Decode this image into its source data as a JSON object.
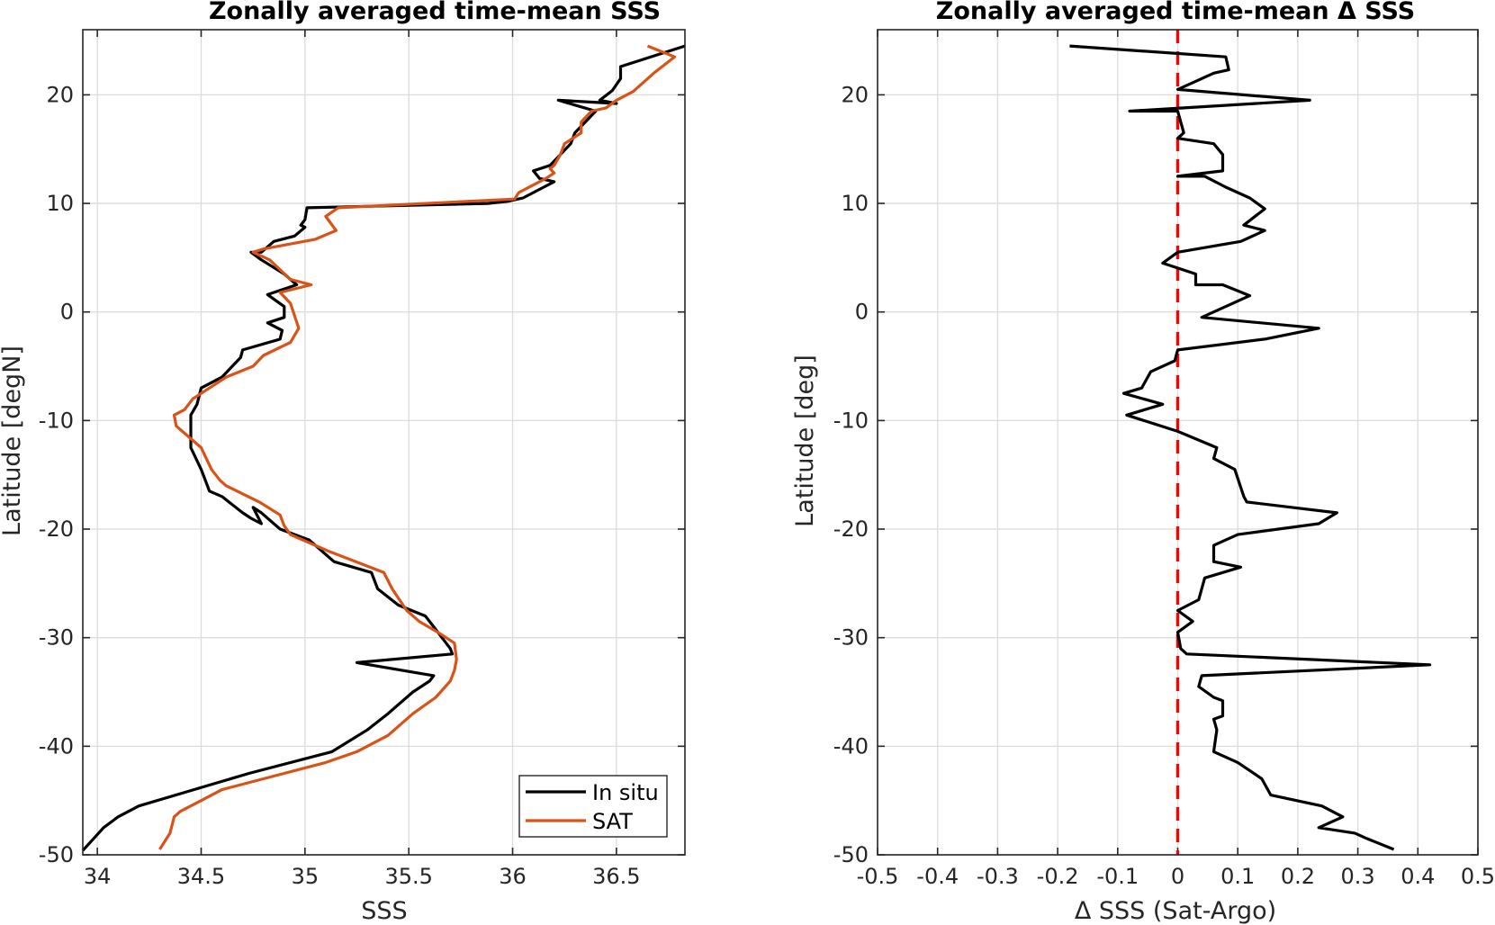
{
  "chart_data": [
    {
      "type": "line",
      "title": "Zonally averaged time-mean SSS",
      "xlabel": "SSS",
      "ylabel": "Latitude [degN]",
      "xlim": [
        33.93,
        36.83
      ],
      "ylim": [
        -50,
        26
      ],
      "xticks": [
        34,
        34.5,
        35,
        35.5,
        36,
        36.5
      ],
      "xtick_labels": [
        "34",
        "34.5",
        "35",
        "35.5",
        "36",
        "36.5"
      ],
      "yticks": [
        -50,
        -40,
        -30,
        -20,
        -10,
        0,
        10,
        20
      ],
      "ytick_labels": [
        "-50",
        "-40",
        "-30",
        "-20",
        "-10",
        "0",
        "10",
        "20"
      ],
      "grid": true,
      "legend_position": "bottom-right",
      "series": [
        {
          "name": "In situ",
          "color": "#000000",
          "x": [
            36.83,
            36.52,
            36.52,
            36.48,
            36.42,
            36.5,
            36.22,
            36.4,
            36.35,
            36.3,
            36.28,
            36.23,
            36.18,
            36.1,
            36.13,
            36.2,
            36.15,
            36.05,
            35.98,
            35.88,
            35.01,
            35.0,
            34.98,
            35.0,
            34.95,
            34.85,
            34.79,
            34.74,
            34.79,
            34.9,
            34.96,
            34.82,
            34.9,
            34.9,
            34.82,
            34.89,
            34.88,
            34.7,
            34.69,
            34.65,
            34.6,
            34.5,
            34.48,
            34.45,
            34.45,
            34.45,
            34.5,
            34.52,
            34.54,
            34.6,
            34.7,
            34.74,
            34.79,
            34.75,
            34.79,
            34.88,
            35.02,
            35.14,
            35.32,
            35.35,
            35.45,
            35.58,
            35.62,
            35.66,
            35.7,
            35.71,
            35.25,
            35.62,
            35.6,
            35.52,
            35.4,
            35.3,
            35.13,
            34.73,
            34.2,
            34.1,
            34.03,
            33.93
          ],
          "y": [
            24.5,
            22.6,
            21.5,
            20.4,
            19.5,
            19.2,
            19.5,
            18.5,
            17.5,
            16.5,
            15.5,
            14.5,
            13.5,
            13.0,
            12.3,
            12.0,
            11.5,
            10.5,
            10.2,
            10.0,
            9.6,
            8.5,
            8.0,
            7.8,
            7.0,
            6.5,
            5.5,
            5.5,
            4.8,
            3.5,
            2.5,
            1.6,
            0.5,
            -0.5,
            -1.0,
            -1.7,
            -2.5,
            -3.5,
            -4.2,
            -5.0,
            -6.0,
            -7.0,
            -8.5,
            -9.5,
            -11.0,
            -12.5,
            -14.5,
            -15.5,
            -16.5,
            -17.0,
            -18.5,
            -19.0,
            -19.5,
            -18.0,
            -18.5,
            -20.0,
            -21.0,
            -23.0,
            -24.0,
            -25.5,
            -27.0,
            -28.0,
            -29.0,
            -30.0,
            -31.0,
            -31.5,
            -32.3,
            -33.5,
            -34.0,
            -35.0,
            -37.0,
            -38.5,
            -40.5,
            -42.5,
            -45.5,
            -46.5,
            -47.5,
            -49.6
          ]
        },
        {
          "name": "SAT",
          "color": "#d95319",
          "x": [
            36.65,
            36.78,
            36.68,
            36.58,
            36.5,
            36.45,
            36.38,
            36.33,
            36.33,
            36.25,
            36.23,
            36.2,
            36.18,
            36.2,
            36.16,
            36.03,
            36.01,
            35.16,
            35.1,
            35.15,
            35.05,
            34.8,
            34.75,
            34.83,
            34.93,
            35.03,
            34.88,
            34.93,
            34.97,
            34.93,
            34.8,
            34.75,
            34.62,
            34.54,
            34.46,
            34.42,
            34.37,
            34.38,
            34.5,
            34.55,
            34.59,
            34.62,
            34.78,
            34.88,
            34.9,
            34.93,
            35.11,
            35.38,
            35.42,
            35.49,
            35.55,
            35.64,
            35.72,
            35.73,
            35.72,
            35.7,
            35.63,
            35.52,
            35.4,
            35.25,
            35.1,
            34.8,
            34.6,
            34.5,
            34.4,
            34.37,
            34.35,
            34.3
          ],
          "y": [
            24.5,
            23.5,
            22.0,
            20.3,
            19.5,
            18.8,
            18.5,
            17.5,
            16.5,
            15.5,
            14.5,
            13.5,
            13.2,
            12.8,
            12.3,
            11.0,
            10.4,
            9.6,
            8.8,
            7.5,
            6.7,
            5.8,
            5.5,
            4.8,
            3.0,
            2.5,
            1.8,
            0.8,
            -1.5,
            -2.8,
            -4.0,
            -5.0,
            -6.0,
            -7.0,
            -8.0,
            -9.0,
            -9.5,
            -10.5,
            -12.5,
            -14.5,
            -15.5,
            -16.0,
            -17.5,
            -18.7,
            -19.7,
            -20.5,
            -22.0,
            -24.0,
            -25.5,
            -27.5,
            -28.5,
            -29.5,
            -30.5,
            -32.0,
            -33.0,
            -34.0,
            -35.5,
            -37.0,
            -39.0,
            -40.5,
            -41.5,
            -43.0,
            -44.0,
            -45.0,
            -46.0,
            -46.5,
            -48.0,
            -49.5
          ]
        }
      ]
    },
    {
      "type": "line",
      "title": "Zonally averaged time-mean Δ SSS",
      "xlabel": "Δ SSS (Sat-Argo)",
      "ylabel": "Latitude [deg]",
      "xlim": [
        -0.5,
        0.5
      ],
      "ylim": [
        -50,
        26
      ],
      "xticks": [
        -0.5,
        -0.4,
        -0.3,
        -0.2,
        -0.1,
        0,
        0.1,
        0.2,
        0.3,
        0.4,
        0.5
      ],
      "xtick_labels": [
        "-0.5",
        "-0.4",
        "-0.3",
        "-0.2",
        "-0.1",
        "0",
        "0.1",
        "0.2",
        "0.3",
        "0.4",
        "0.5"
      ],
      "yticks": [
        -50,
        -40,
        -30,
        -20,
        -10,
        0,
        10,
        20
      ],
      "ytick_labels": [
        "-50",
        "-40",
        "-30",
        "-20",
        "-10",
        "0",
        "10",
        "20"
      ],
      "grid": true,
      "reference_line": {
        "x": 0,
        "color": "#ff0000",
        "style": "dashed"
      },
      "series": [
        {
          "color": "#000000",
          "x": [
            -0.18,
            0.08,
            0.085,
            0.06,
            0.0,
            0.22,
            -0.08,
            0.0,
            0.01,
            0.0,
            0.06,
            0.075,
            0.075,
            0.0,
            0.045,
            0.08,
            0.12,
            0.145,
            0.11,
            0.145,
            0.105,
            0.0,
            -0.025,
            0.03,
            0.03,
            0.075,
            0.12,
            0.04,
            0.235,
            0.145,
            0.0,
            -0.005,
            -0.045,
            -0.06,
            -0.09,
            -0.025,
            -0.085,
            0.0,
            0.065,
            0.06,
            0.095,
            0.11,
            0.115,
            0.265,
            0.235,
            0.1,
            0.06,
            0.06,
            0.105,
            0.045,
            0.035,
            0.0,
            0.025,
            0.0,
            0.005,
            0.015,
            0.42,
            0.04,
            0.035,
            0.06,
            0.075,
            0.075,
            0.06,
            0.065,
            0.06,
            0.1,
            0.14,
            0.155,
            0.24,
            0.275,
            0.235,
            0.295,
            0.315,
            0.36
          ],
          "y": [
            24.5,
            23.5,
            22.3,
            22.0,
            20.5,
            19.5,
            18.5,
            18.5,
            16.5,
            16.0,
            15.5,
            14.5,
            13.0,
            12.5,
            12.5,
            11.5,
            10.5,
            9.5,
            8.0,
            7.5,
            6.5,
            5.5,
            4.5,
            3.5,
            2.5,
            2.5,
            1.5,
            -0.5,
            -1.5,
            -2.5,
            -3.5,
            -4.5,
            -5.5,
            -7.0,
            -7.5,
            -8.5,
            -9.5,
            -11.0,
            -12.5,
            -13.5,
            -14.5,
            -17.0,
            -17.5,
            -18.5,
            -19.5,
            -20.5,
            -21.5,
            -23.0,
            -23.5,
            -24.5,
            -26.5,
            -27.5,
            -28.5,
            -29.5,
            -31.0,
            -31.5,
            -32.5,
            -33.5,
            -34.5,
            -35.5,
            -35.8,
            -37.2,
            -37.5,
            -38.5,
            -40.5,
            -41.5,
            -43.0,
            -44.5,
            -45.5,
            -46.5,
            -47.5,
            -48.0,
            -48.5,
            -49.5
          ]
        }
      ]
    }
  ]
}
